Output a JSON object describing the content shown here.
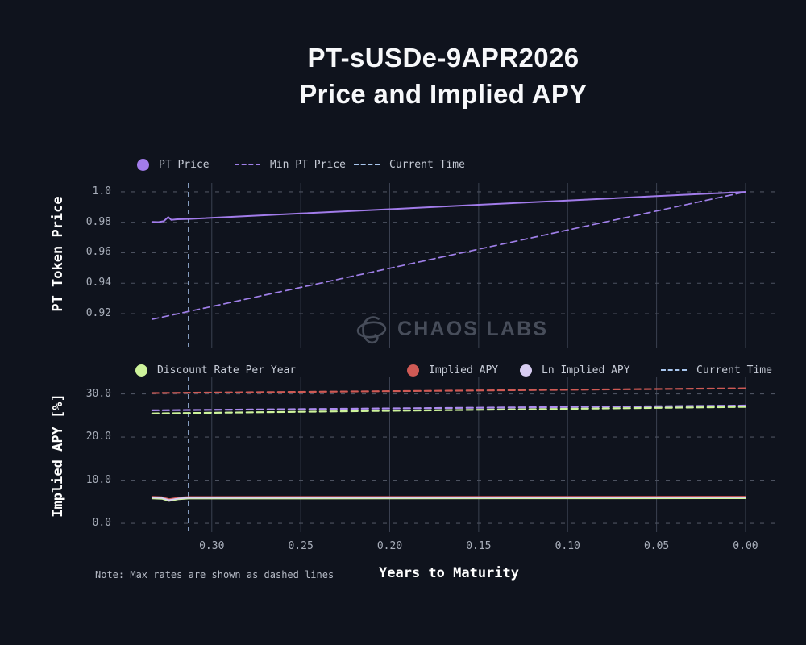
{
  "title": {
    "line1": "PT-sUSDe-9APR2026",
    "line2": "Price and Implied APY"
  },
  "watermark": {
    "text": "CHAOS LABS"
  },
  "note": "Note: Max rates are shown as dashed lines",
  "colors": {
    "background": "#0f131d",
    "title_text": "#f7f8fa",
    "legend_text": "#c6cbd6",
    "tick_text": "#a8aeba",
    "grid_dashed": "#4c5260",
    "grid_vertical": "#3a4150",
    "purple": "#a985ef",
    "light_blue": "#a9c6ee",
    "green": "#cdf39b",
    "red": "#cf5a55",
    "pale_lavender": "#d8cdf2",
    "watermark_gray": "#474d5a"
  },
  "chart_data": [
    {
      "type": "line",
      "ylabel": "PT Token Price",
      "xlim": [
        0.352,
        -0.0195
      ],
      "ylim": [
        0.8951,
        1.0074
      ],
      "yticks": [
        0.92,
        0.94,
        0.96,
        0.98,
        1.0
      ],
      "ytick_labels": [
        "0.92",
        "0.94",
        "0.96",
        "0.98",
        "1.0"
      ],
      "xticks": [
        0.3,
        0.25,
        0.2,
        0.15,
        0.1,
        0.05,
        0.0
      ],
      "grid": "dashed-horizontal, solid-vertical",
      "legend_position": "top-left",
      "series": [
        {
          "name": "PT Price",
          "style": "solid",
          "color": "#a27ceb",
          "width": 2,
          "points": [
            [
              0.3335,
              0.9802
            ],
            [
              0.33,
              0.9801
            ],
            [
              0.327,
              0.9807
            ],
            [
              0.3245,
              0.9834
            ],
            [
              0.3228,
              0.9816
            ],
            [
              0.3195,
              0.982
            ],
            [
              0.313,
              0.9822
            ],
            [
              0.25,
              0.9858
            ],
            [
              0.2,
              0.9886
            ],
            [
              0.15,
              0.9915
            ],
            [
              0.1,
              0.9943
            ],
            [
              0.05,
              0.9972
            ],
            [
              0.0,
              1.0
            ]
          ]
        },
        {
          "name": "Min PT Price",
          "style": "dashed",
          "color": "#9f7fe8",
          "width": 1.7,
          "points": [
            [
              0.3335,
              0.9163
            ],
            [
              0.0,
              1.0
            ]
          ]
        },
        {
          "name": "Current Time",
          "style": "vline",
          "color": "#a9c6ee",
          "width": 1.7,
          "x": 0.313
        }
      ]
    },
    {
      "type": "line",
      "ylabel": "Implied APY [%]",
      "xlabel": "Years to Maturity",
      "xlim": [
        0.352,
        -0.0195
      ],
      "ylim": [
        -2.8,
        34.6
      ],
      "yticks": [
        0.0,
        10.0,
        20.0,
        30.0
      ],
      "ytick_labels": [
        "0.0",
        "10.0",
        "20.0",
        "30.0"
      ],
      "xticks": [
        0.3,
        0.25,
        0.2,
        0.15,
        0.1,
        0.05,
        0.0
      ],
      "xtick_labels": [
        "0.30",
        "0.25",
        "0.20",
        "0.15",
        "0.10",
        "0.05",
        "0.00"
      ],
      "grid": "dashed-horizontal, solid-vertical",
      "legend_position": "top-left",
      "series": [
        {
          "name": "Discount Rate Per Year",
          "style": "solid",
          "color": "#cdf39b",
          "width": 1.8,
          "points": [
            [
              0.3335,
              5.75
            ],
            [
              0.328,
              5.65
            ],
            [
              0.324,
              5.15
            ],
            [
              0.3185,
              5.55
            ],
            [
              0.313,
              5.7
            ],
            [
              0.0,
              5.78
            ]
          ]
        },
        {
          "name": "Implied APY",
          "style": "solid",
          "color": "#cf5a55",
          "width": 1.8,
          "points": [
            [
              0.3335,
              6.15
            ],
            [
              0.328,
              6.05
            ],
            [
              0.324,
              5.6
            ],
            [
              0.3185,
              5.95
            ],
            [
              0.313,
              6.1
            ],
            [
              0.0,
              6.18
            ]
          ]
        },
        {
          "name": "Ln Implied APY",
          "style": "solid",
          "color": "#d8cdf2",
          "width": 1.8,
          "points": [
            [
              0.3335,
              5.95
            ],
            [
              0.328,
              5.85
            ],
            [
              0.324,
              5.38
            ],
            [
              0.3185,
              5.75
            ],
            [
              0.313,
              5.9
            ],
            [
              0.0,
              5.98
            ]
          ]
        },
        {
          "name": "Max Implied APY",
          "style": "dashed",
          "color": "#cf5a55",
          "width": 2.2,
          "points": [
            [
              0.3335,
              30.2
            ],
            [
              0.0,
              31.3
            ]
          ]
        },
        {
          "name": "Max Ln Implied APY",
          "style": "dashed",
          "color": "#ab8bee",
          "width": 2.2,
          "points": [
            [
              0.3335,
              26.2
            ],
            [
              0.0,
              27.3
            ]
          ]
        },
        {
          "name": "Max Discount Rate Per Year",
          "style": "dashed",
          "color": "#cdf39b",
          "width": 2.2,
          "points": [
            [
              0.3335,
              25.5
            ],
            [
              0.0,
              27.0
            ]
          ]
        },
        {
          "name": "Current Time",
          "style": "vline",
          "color": "#a9c6ee",
          "width": 1.7,
          "x": 0.313
        }
      ]
    }
  ]
}
